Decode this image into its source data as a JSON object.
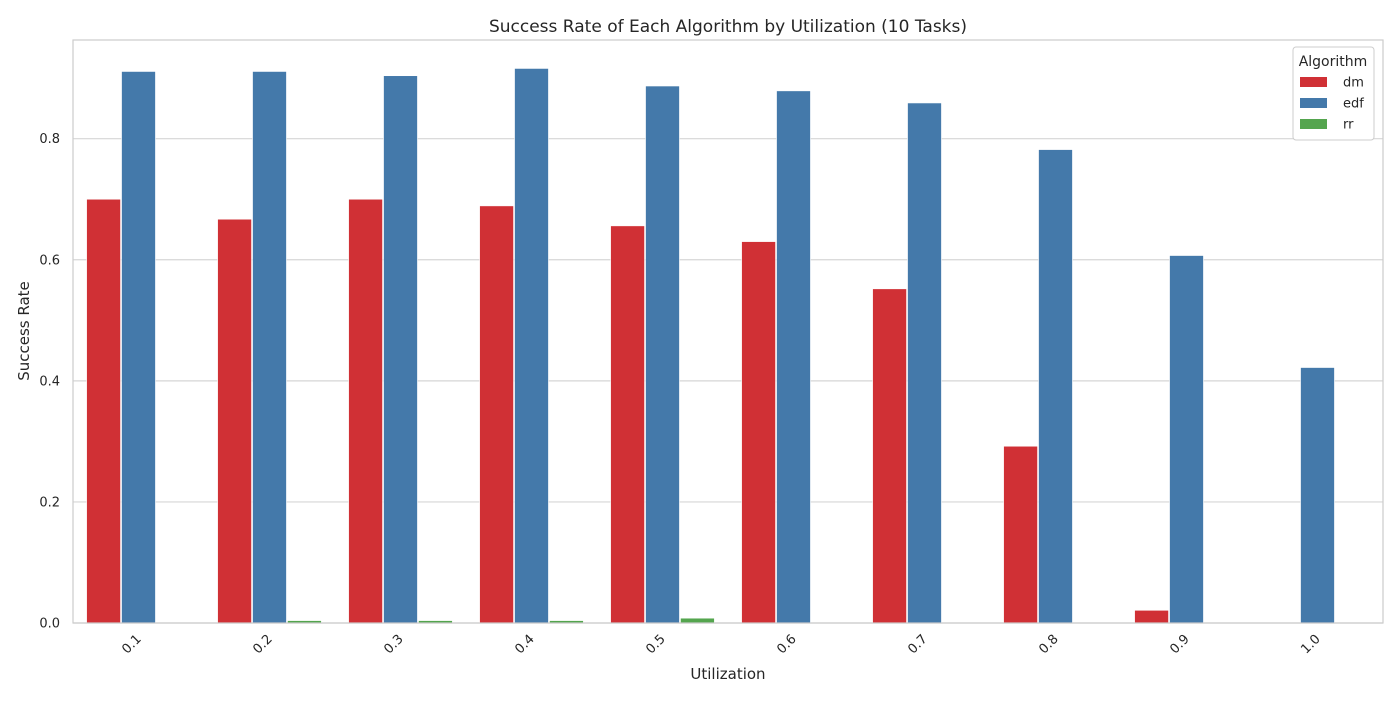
{
  "chart_data": {
    "type": "bar",
    "title": "Success Rate of Each Algorithm by Utilization (10 Tasks)",
    "xlabel": "Utilization",
    "ylabel": "Success Rate",
    "categories": [
      "0.1",
      "0.2",
      "0.3",
      "0.4",
      "0.5",
      "0.6",
      "0.7",
      "0.8",
      "0.9",
      "1.0"
    ],
    "series": [
      {
        "name": "dm",
        "color": "#d03035",
        "values": [
          0.7,
          0.667,
          0.7,
          0.689,
          0.656,
          0.63,
          0.552,
          0.292,
          0.021,
          0.0
        ]
      },
      {
        "name": "edf",
        "color": "#4479aa",
        "values": [
          0.911,
          0.911,
          0.904,
          0.916,
          0.887,
          0.879,
          0.859,
          0.782,
          0.607,
          0.422
        ]
      },
      {
        "name": "rr",
        "color": "#54a54e",
        "values": [
          0.0,
          0.004,
          0.004,
          0.004,
          0.008,
          0.0,
          0.0,
          0.0,
          0.0,
          0.0
        ]
      }
    ],
    "ylim": [
      0,
      0.963
    ],
    "yticks": [
      "0.0",
      "0.2",
      "0.4",
      "0.6",
      "0.8"
    ],
    "grid": true,
    "legend": {
      "title": "Algorithm",
      "position": "top-right"
    }
  }
}
